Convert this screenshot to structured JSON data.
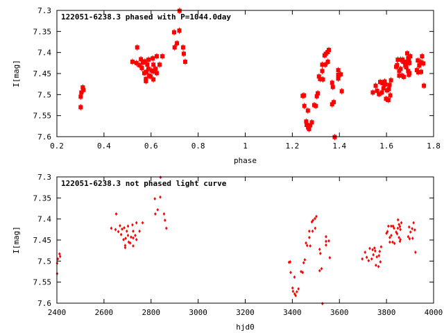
{
  "colors": {
    "points": "#ff0000",
    "axes": "#000000"
  },
  "chart_data": [
    {
      "type": "scatter",
      "title": "122051-6238.3 phased with P=1044.0day",
      "xlabel": "phase",
      "ylabel": "I[mag]",
      "xlim": [
        0.2,
        1.8
      ],
      "ylim": [
        7.6,
        7.3
      ],
      "xticks": [
        "0.2",
        "0.4",
        "0.6",
        "0.8",
        "1",
        "1.2",
        "1.4",
        "1.6",
        "1.8"
      ],
      "xtick_values": [
        0.2,
        0.4,
        0.6,
        0.8,
        1.0,
        1.2,
        1.4,
        1.6,
        1.8
      ],
      "yticks": [
        "7.3",
        "7.35",
        "7.4",
        "7.45",
        "7.5",
        "7.55",
        "7.6"
      ],
      "ytick_values": [
        7.3,
        7.35,
        7.4,
        7.45,
        7.5,
        7.55,
        7.6
      ],
      "grid": false,
      "marker": "square-errorbar",
      "points": [
        [
          0.301,
          7.53
        ],
        [
          0.301,
          7.505
        ],
        [
          0.304,
          7.495
        ],
        [
          0.31,
          7.483
        ],
        [
          0.313,
          7.489
        ],
        [
          0.521,
          7.422
        ],
        [
          0.541,
          7.388
        ],
        [
          0.538,
          7.425
        ],
        [
          0.55,
          7.43
        ],
        [
          0.557,
          7.416
        ],
        [
          0.561,
          7.437
        ],
        [
          0.565,
          7.424
        ],
        [
          0.571,
          7.449
        ],
        [
          0.574,
          7.421
        ],
        [
          0.578,
          7.463
        ],
        [
          0.578,
          7.468
        ],
        [
          0.58,
          7.446
        ],
        [
          0.584,
          7.429
        ],
        [
          0.589,
          7.417
        ],
        [
          0.589,
          7.439
        ],
        [
          0.592,
          7.455
        ],
        [
          0.598,
          7.457
        ],
        [
          0.602,
          7.443
        ],
        [
          0.607,
          7.414
        ],
        [
          0.61,
          7.429
        ],
        [
          0.61,
          7.464
        ],
        [
          0.61,
          7.445
        ],
        [
          0.619,
          7.439
        ],
        [
          0.624,
          7.409
        ],
        [
          0.624,
          7.449
        ],
        [
          0.636,
          7.429
        ],
        [
          0.648,
          7.409
        ],
        [
          0.698,
          7.352
        ],
        [
          0.72,
          7.348
        ],
        [
          0.721,
          7.301
        ],
        [
          0.7,
          7.388
        ],
        [
          0.71,
          7.378
        ],
        [
          0.736,
          7.388
        ],
        [
          0.739,
          7.403
        ],
        [
          0.745,
          7.422
        ],
        [
          1.244,
          7.503
        ],
        [
          1.249,
          7.502
        ],
        [
          1.251,
          7.527
        ],
        [
          1.266,
          7.538
        ],
        [
          1.259,
          7.564
        ],
        [
          1.261,
          7.572
        ],
        [
          1.267,
          7.578
        ],
        [
          1.271,
          7.582
        ],
        [
          1.276,
          7.573
        ],
        [
          1.283,
          7.566
        ],
        [
          1.293,
          7.525
        ],
        [
          1.3,
          7.527
        ],
        [
          1.304,
          7.504
        ],
        [
          1.308,
          7.497
        ],
        [
          1.313,
          7.457
        ],
        [
          1.318,
          7.463
        ],
        [
          1.33,
          7.464
        ],
        [
          1.327,
          7.444
        ],
        [
          1.327,
          7.429
        ],
        [
          1.34,
          7.429
        ],
        [
          1.351,
          7.422
        ],
        [
          1.337,
          7.407
        ],
        [
          1.342,
          7.403
        ],
        [
          1.35,
          7.399
        ],
        [
          1.355,
          7.394
        ],
        [
          1.369,
          7.472
        ],
        [
          1.372,
          7.482
        ],
        [
          1.369,
          7.523
        ],
        [
          1.376,
          7.518
        ],
        [
          1.38,
          7.601
        ],
        [
          1.395,
          7.442
        ],
        [
          1.395,
          7.453
        ],
        [
          1.406,
          7.452
        ],
        [
          1.395,
          7.462
        ],
        [
          1.41,
          7.492
        ],
        [
          1.542,
          7.495
        ],
        [
          1.554,
          7.479
        ],
        [
          1.56,
          7.491
        ],
        [
          1.568,
          7.499
        ],
        [
          1.573,
          7.47
        ],
        [
          1.58,
          7.495
        ],
        [
          1.584,
          7.473
        ],
        [
          1.587,
          7.485
        ],
        [
          1.592,
          7.469
        ],
        [
          1.595,
          7.476
        ],
        [
          1.598,
          7.51
        ],
        [
          1.602,
          7.49
        ],
        [
          1.608,
          7.513
        ],
        [
          1.61,
          7.487
        ],
        [
          1.613,
          7.477
        ],
        [
          1.616,
          7.502
        ],
        [
          1.619,
          7.466
        ],
        [
          1.641,
          7.434
        ],
        [
          1.645,
          7.43
        ],
        [
          1.648,
          7.417
        ],
        [
          1.654,
          7.444
        ],
        [
          1.654,
          7.455
        ],
        [
          1.66,
          7.439
        ],
        [
          1.66,
          7.417
        ],
        [
          1.666,
          7.455
        ],
        [
          1.668,
          7.417
        ],
        [
          1.671,
          7.422
        ],
        [
          1.673,
          7.458
        ],
        [
          1.68,
          7.431
        ],
        [
          1.684,
          7.435
        ],
        [
          1.687,
          7.422
        ],
        [
          1.688,
          7.402
        ],
        [
          1.692,
          7.413
        ],
        [
          1.695,
          7.418
        ],
        [
          1.692,
          7.444
        ],
        [
          1.695,
          7.453
        ],
        [
          1.697,
          7.425
        ],
        [
          1.701,
          7.409
        ],
        [
          1.697,
          7.449
        ],
        [
          1.729,
          7.442
        ],
        [
          1.733,
          7.419
        ],
        [
          1.735,
          7.447
        ],
        [
          1.739,
          7.431
        ],
        [
          1.745,
          7.423
        ],
        [
          1.747,
          7.446
        ],
        [
          1.751,
          7.409
        ],
        [
          1.756,
          7.426
        ],
        [
          1.759,
          7.479
        ]
      ]
    },
    {
      "type": "scatter",
      "title": "122051-6238.3 not phased light curve",
      "xlabel": "hjd0",
      "ylabel": "I[mag]",
      "xlim": [
        2400,
        4000
      ],
      "ylim": [
        7.6,
        7.3
      ],
      "xticks": [
        "2400",
        "2600",
        "2800",
        "3000",
        "3200",
        "3400",
        "3600",
        "3800",
        "4000"
      ],
      "xtick_values": [
        2400,
        2600,
        2800,
        3000,
        3200,
        3400,
        3600,
        3800,
        4000
      ],
      "yticks": [
        "7.3",
        "7.35",
        "7.4",
        "7.45",
        "7.5",
        "7.55",
        "7.6"
      ],
      "ytick_values": [
        7.3,
        7.35,
        7.4,
        7.45,
        7.5,
        7.55,
        7.6
      ],
      "grid": false,
      "marker": "diamond",
      "points": [
        [
          2401,
          7.53
        ],
        [
          2401,
          7.505
        ],
        [
          2404,
          7.495
        ],
        [
          2411,
          7.483
        ],
        [
          2414,
          7.489
        ],
        [
          2631,
          7.422
        ],
        [
          2652,
          7.388
        ],
        [
          2649,
          7.425
        ],
        [
          2661,
          7.43
        ],
        [
          2668,
          7.416
        ],
        [
          2673,
          7.437
        ],
        [
          2677,
          7.424
        ],
        [
          2683,
          7.449
        ],
        [
          2686,
          7.421
        ],
        [
          2690,
          7.463
        ],
        [
          2690,
          7.468
        ],
        [
          2692,
          7.446
        ],
        [
          2697,
          7.429
        ],
        [
          2702,
          7.417
        ],
        [
          2702,
          7.439
        ],
        [
          2705,
          7.455
        ],
        [
          2711,
          7.457
        ],
        [
          2715,
          7.443
        ],
        [
          2721,
          7.414
        ],
        [
          2724,
          7.429
        ],
        [
          2724,
          7.464
        ],
        [
          2724,
          7.445
        ],
        [
          2733,
          7.439
        ],
        [
          2738,
          7.409
        ],
        [
          2738,
          7.449
        ],
        [
          2751,
          7.429
        ],
        [
          2764,
          7.409
        ],
        [
          2816,
          7.352
        ],
        [
          2839,
          7.348
        ],
        [
          2840,
          7.301
        ],
        [
          2818,
          7.388
        ],
        [
          2828,
          7.378
        ],
        [
          2855,
          7.388
        ],
        [
          2859,
          7.403
        ],
        [
          2865,
          7.422
        ],
        [
          3386,
          7.503
        ],
        [
          3391,
          7.502
        ],
        [
          3393,
          7.527
        ],
        [
          3409,
          7.538
        ],
        [
          3401,
          7.564
        ],
        [
          3403,
          7.572
        ],
        [
          3410,
          7.578
        ],
        [
          3414,
          7.582
        ],
        [
          3419,
          7.573
        ],
        [
          3426,
          7.566
        ],
        [
          3437,
          7.525
        ],
        [
          3444,
          7.527
        ],
        [
          3448,
          7.504
        ],
        [
          3453,
          7.497
        ],
        [
          3458,
          7.457
        ],
        [
          3463,
          7.463
        ],
        [
          3476,
          7.464
        ],
        [
          3472,
          7.444
        ],
        [
          3472,
          7.429
        ],
        [
          3486,
          7.429
        ],
        [
          3497,
          7.422
        ],
        [
          3483,
          7.407
        ],
        [
          3488,
          7.403
        ],
        [
          3496,
          7.399
        ],
        [
          3502,
          7.394
        ],
        [
          3516,
          7.472
        ],
        [
          3519,
          7.482
        ],
        [
          3516,
          7.523
        ],
        [
          3524,
          7.518
        ],
        [
          3528,
          7.601
        ],
        [
          3543,
          7.442
        ],
        [
          3543,
          7.453
        ],
        [
          3555,
          7.452
        ],
        [
          3543,
          7.462
        ],
        [
          3559,
          7.492
        ],
        [
          3697,
          7.495
        ],
        [
          3709,
          7.479
        ],
        [
          3716,
          7.491
        ],
        [
          3724,
          7.499
        ],
        [
          3729,
          7.47
        ],
        [
          3737,
          7.495
        ],
        [
          3741,
          7.473
        ],
        [
          3744,
          7.485
        ],
        [
          3749,
          7.469
        ],
        [
          3752,
          7.476
        ],
        [
          3755,
          7.51
        ],
        [
          3759,
          7.49
        ],
        [
          3766,
          7.513
        ],
        [
          3768,
          7.487
        ],
        [
          3771,
          7.477
        ],
        [
          3774,
          7.502
        ],
        [
          3777,
          7.466
        ],
        [
          3800,
          7.434
        ],
        [
          3804,
          7.43
        ],
        [
          3808,
          7.417
        ],
        [
          3814,
          7.444
        ],
        [
          3814,
          7.455
        ],
        [
          3820,
          7.439
        ],
        [
          3820,
          7.417
        ],
        [
          3826,
          7.455
        ],
        [
          3828,
          7.417
        ],
        [
          3832,
          7.422
        ],
        [
          3834,
          7.458
        ],
        [
          3841,
          7.431
        ],
        [
          3845,
          7.435
        ],
        [
          3848,
          7.422
        ],
        [
          3849,
          7.402
        ],
        [
          3853,
          7.413
        ],
        [
          3857,
          7.418
        ],
        [
          3853,
          7.444
        ],
        [
          3857,
          7.453
        ],
        [
          3859,
          7.425
        ],
        [
          3863,
          7.409
        ],
        [
          3859,
          7.449
        ],
        [
          3892,
          7.442
        ],
        [
          3896,
          7.419
        ],
        [
          3898,
          7.447
        ],
        [
          3902,
          7.431
        ],
        [
          3909,
          7.423
        ],
        [
          3911,
          7.446
        ],
        [
          3915,
          7.409
        ],
        [
          3920,
          7.426
        ],
        [
          3923,
          7.479
        ]
      ]
    }
  ]
}
